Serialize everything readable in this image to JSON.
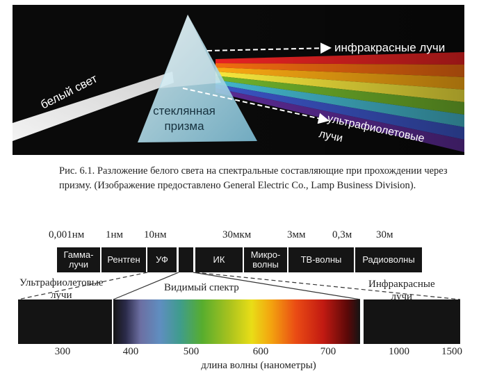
{
  "prism_figure": {
    "labels": {
      "white_light": "белый свет",
      "prism_line1": "стеклянная",
      "prism_line2": "призма",
      "infrared": "инфракрасные лучи",
      "ultraviolet_line1": "ультрафиолетовые",
      "ultraviolet_line2": "лучи"
    },
    "band_colors": [
      "#e52222",
      "#f06a10",
      "#f8a813",
      "#f4e53c",
      "#6fb12a",
      "#42b3c8",
      "#3a53c2",
      "#5a2a92"
    ]
  },
  "caption": "Рис. 6.1. Разложение белого света на спектральные составляющие при прохождении через призму. (Изображение предоставлено General Electric Co., Lamp Business Division).",
  "em_spectrum": {
    "wavelength_marks": [
      "0,001нм",
      "1нм",
      "10нм",
      "30мкм",
      "3мм",
      "0,3м",
      "30м"
    ],
    "bands": {
      "gamma_line1": "Гамма-",
      "gamma_line2": "лучи",
      "xray": "Рентген",
      "uv": "УФ",
      "ir": "ИК",
      "micro_line1": "Микро-",
      "micro_line2": "волны",
      "tv": "ТВ-волны",
      "radio": "Радиоволны"
    },
    "uv_label_line1": "Ультрафиолетовые",
    "uv_label_line2": "лучи",
    "visible_label": "Видимый спектр",
    "ir_label_line1": "Инфракрасные",
    "ir_label_line2": "лучи",
    "axis_ticks": [
      "300",
      "400",
      "500",
      "600",
      "700",
      "1000",
      "1500"
    ],
    "axis_title": "длина волны (нанометры)"
  }
}
